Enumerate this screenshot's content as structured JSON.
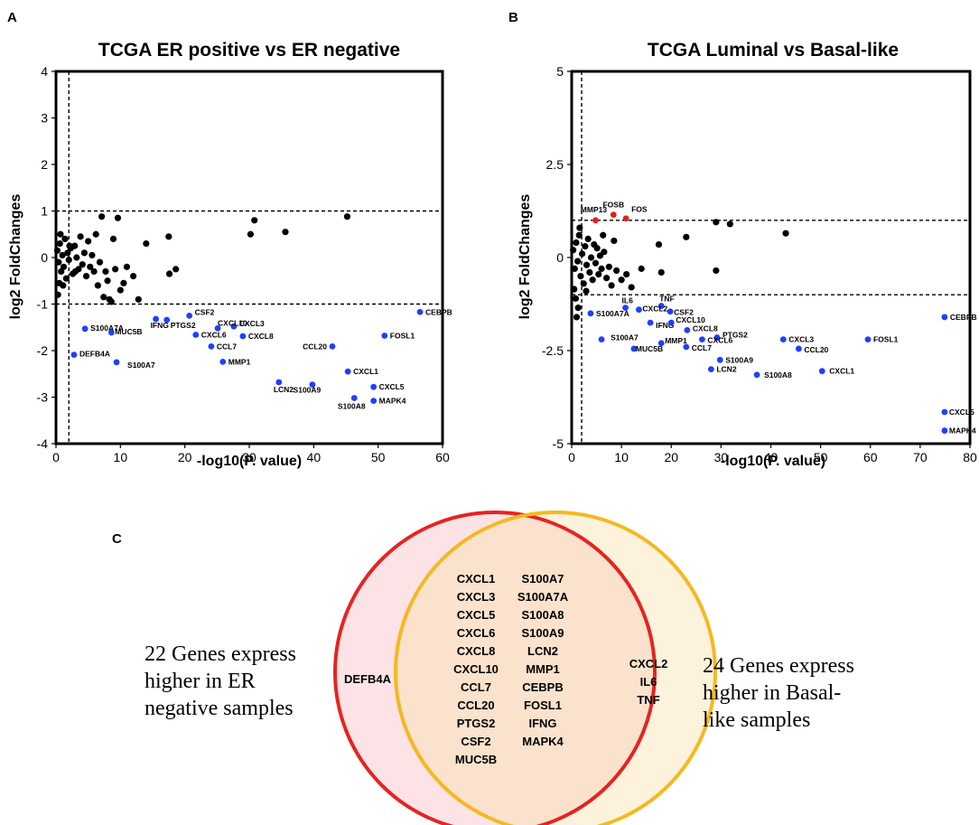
{
  "chart_data": [
    {
      "type": "scatter",
      "panel": "A",
      "title": "TCGA ER positive vs ER negative",
      "xlabel": "-log10(P. value)",
      "ylabel": "log2 FoldChanges",
      "xlim": [
        0,
        60
      ],
      "ylim": [
        -4,
        4
      ],
      "xticks": [
        0,
        10,
        20,
        30,
        40,
        50,
        60
      ],
      "yticks": [
        -4,
        -3,
        -2,
        -1,
        0,
        1,
        2,
        3,
        4
      ],
      "thresholds": {
        "y": [
          1,
          -1
        ],
        "x": [
          2
        ]
      },
      "labeled_points": [
        {
          "label": "CEBPB",
          "x": 56.5,
          "y": -1.17,
          "color": "#1f3fff"
        },
        {
          "label": "FOSL1",
          "x": 51.0,
          "y": -1.68,
          "color": "#1f3fff"
        },
        {
          "label": "CCL20",
          "x": 42.9,
          "y": -1.91,
          "color": "#1f3fff"
        },
        {
          "label": "CXCL1",
          "x": 45.3,
          "y": -2.45,
          "color": "#1f3fff"
        },
        {
          "label": "CXCL5",
          "x": 49.3,
          "y": -2.78,
          "color": "#1f3fff"
        },
        {
          "label": "MAPK4",
          "x": 49.3,
          "y": -3.08,
          "color": "#1f3fff"
        },
        {
          "label": "S100A8",
          "x": 46.3,
          "y": -3.02,
          "color": "#1f3fff"
        },
        {
          "label": "S100A9",
          "x": 39.8,
          "y": -2.73,
          "color": "#1f3fff"
        },
        {
          "label": "LCN2",
          "x": 34.6,
          "y": -2.68,
          "color": "#1f3fff"
        },
        {
          "label": "MMP1",
          "x": 25.9,
          "y": -2.24,
          "color": "#1f3fff"
        },
        {
          "label": "CCL7",
          "x": 24.1,
          "y": -1.91,
          "color": "#1f3fff"
        },
        {
          "label": "CXCL8",
          "x": 29.0,
          "y": -1.69,
          "color": "#1f3fff"
        },
        {
          "label": "CXCL3",
          "x": 27.6,
          "y": -1.48,
          "color": "#1f3fff"
        },
        {
          "label": "CXCL10",
          "x": 25.1,
          "y": -1.52,
          "color": "#1f3fff"
        },
        {
          "label": "CXCL6",
          "x": 21.7,
          "y": -1.66,
          "color": "#1f3fff"
        },
        {
          "label": "CSF2",
          "x": 20.7,
          "y": -1.25,
          "color": "#1f3fff"
        },
        {
          "label": "PTGS2",
          "x": 17.2,
          "y": -1.34,
          "color": "#1f3fff"
        },
        {
          "label": "IFNG",
          "x": 15.5,
          "y": -1.32,
          "color": "#1f3fff"
        },
        {
          "label": "S100A7A",
          "x": 4.5,
          "y": -1.53,
          "color": "#1f3fff"
        },
        {
          "label": "MUC5B",
          "x": 8.6,
          "y": -1.61,
          "color": "#1f3fff"
        },
        {
          "label": "DEFB4A",
          "x": 2.8,
          "y": -2.09,
          "color": "#1f3fff"
        },
        {
          "label": "S100A7",
          "x": 9.4,
          "y": -2.25,
          "color": "#1f3fff"
        }
      ],
      "other_points": [
        [
          0.2,
          0.15
        ],
        [
          0.4,
          -0.1
        ],
        [
          0.6,
          0.3
        ],
        [
          0.8,
          -0.3
        ],
        [
          1.0,
          0.05
        ],
        [
          1.2,
          -0.2
        ],
        [
          1.4,
          0.4
        ],
        [
          1.6,
          -0.45
        ],
        [
          1.8,
          0.1
        ],
        [
          2.0,
          -0.05
        ],
        [
          2.3,
          0.2
        ],
        [
          2.6,
          -0.35
        ],
        [
          2.9,
          0.25
        ],
        [
          3.2,
          0.0
        ],
        [
          3.5,
          -0.25
        ],
        [
          3.8,
          0.45
        ],
        [
          4.1,
          -0.15
        ],
        [
          4.4,
          0.1
        ],
        [
          4.7,
          -0.4
        ],
        [
          5.0,
          0.35
        ],
        [
          5.3,
          -0.2
        ],
        [
          5.6,
          0.05
        ],
        [
          5.9,
          -0.3
        ],
        [
          6.2,
          0.5
        ],
        [
          6.5,
          -0.6
        ],
        [
          6.8,
          -0.1
        ],
        [
          7.1,
          0.88
        ],
        [
          7.4,
          -0.85
        ],
        [
          7.7,
          -0.3
        ],
        [
          8.0,
          -0.5
        ],
        [
          8.3,
          -0.9
        ],
        [
          8.6,
          -0.95
        ],
        [
          8.9,
          0.4
        ],
        [
          9.2,
          -0.25
        ],
        [
          9.6,
          0.85
        ],
        [
          10.0,
          -0.7
        ],
        [
          10.5,
          -0.55
        ],
        [
          11.0,
          -0.2
        ],
        [
          12.0,
          -0.4
        ],
        [
          12.8,
          -0.9
        ],
        [
          14.0,
          0.3
        ],
        [
          17.5,
          0.45
        ],
        [
          17.6,
          -0.35
        ],
        [
          18.6,
          -0.25
        ],
        [
          30.2,
          0.5
        ],
        [
          30.8,
          0.8
        ],
        [
          35.6,
          0.55
        ],
        [
          45.2,
          0.88
        ],
        [
          0.3,
          -0.8
        ],
        [
          1.1,
          -0.6
        ],
        [
          2.1,
          0.25
        ],
        [
          0.7,
          0.5
        ],
        [
          3.0,
          -0.3
        ],
        [
          0.5,
          -0.55
        ]
      ]
    },
    {
      "type": "scatter",
      "panel": "B",
      "title": "TCGA Luminal vs Basal-like",
      "xlabel": "-log10(P. value)",
      "ylabel": "log2 FoldChanges",
      "xlim": [
        0,
        80
      ],
      "ylim": [
        -5,
        5
      ],
      "xticks": [
        0,
        10,
        20,
        30,
        40,
        50,
        60,
        70,
        80
      ],
      "yticks": [
        -5,
        -2.5,
        0,
        2.5,
        5
      ],
      "thresholds": {
        "y": [
          1,
          -1
        ],
        "x": [
          2
        ]
      },
      "labeled_points": [
        {
          "label": "MMP13",
          "x": 4.8,
          "y": 1.0,
          "color": "#e02020"
        },
        {
          "label": "FOSB",
          "x": 8.4,
          "y": 1.15,
          "color": "#e02020"
        },
        {
          "label": "FOS",
          "x": 10.9,
          "y": 1.05,
          "color": "#e02020"
        },
        {
          "label": "CEBPB",
          "x": 74.9,
          "y": -1.6,
          "color": "#1f3fff"
        },
        {
          "label": "FOSL1",
          "x": 59.5,
          "y": -2.2,
          "color": "#1f3fff"
        },
        {
          "label": "CXCL3",
          "x": 42.5,
          "y": -2.2,
          "color": "#1f3fff"
        },
        {
          "label": "CCL20",
          "x": 45.6,
          "y": -2.45,
          "color": "#1f3fff"
        },
        {
          "label": "CXCL1",
          "x": 50.3,
          "y": -3.05,
          "color": "#1f3fff"
        },
        {
          "label": "S100A8",
          "x": 37.2,
          "y": -3.15,
          "color": "#1f3fff"
        },
        {
          "label": "S100A9",
          "x": 29.8,
          "y": -2.75,
          "color": "#1f3fff"
        },
        {
          "label": "LCN2",
          "x": 28.0,
          "y": -3.0,
          "color": "#1f3fff"
        },
        {
          "label": "CXCL5",
          "x": 74.9,
          "y": -4.15,
          "color": "#1f3fff"
        },
        {
          "label": "MAPK4",
          "x": 74.9,
          "y": -4.65,
          "color": "#1f3fff"
        },
        {
          "label": "IL6",
          "x": 10.8,
          "y": -1.35,
          "color": "#1f3fff"
        },
        {
          "label": "TNF",
          "x": 18.0,
          "y": -1.3,
          "color": "#1f3fff"
        },
        {
          "label": "CXCL2",
          "x": 13.5,
          "y": -1.4,
          "color": "#1f3fff"
        },
        {
          "label": "CSF2",
          "x": 19.8,
          "y": -1.45,
          "color": "#1f3fff"
        },
        {
          "label": "S100A7A",
          "x": 3.8,
          "y": -1.5,
          "color": "#1f3fff"
        },
        {
          "label": "IFNG",
          "x": 15.8,
          "y": -1.75,
          "color": "#1f3fff"
        },
        {
          "label": "CXCL10",
          "x": 20.0,
          "y": -1.75,
          "color": "#1f3fff"
        },
        {
          "label": "CXCL8",
          "x": 23.2,
          "y": -1.95,
          "color": "#1f3fff"
        },
        {
          "label": "PTGS2",
          "x": 29.2,
          "y": -2.15,
          "color": "#1f3fff"
        },
        {
          "label": "CXCL6",
          "x": 26.2,
          "y": -2.2,
          "color": "#1f3fff"
        },
        {
          "label": "S100A7",
          "x": 6.0,
          "y": -2.2,
          "color": "#1f3fff"
        },
        {
          "label": "MMP1",
          "x": 18.0,
          "y": -2.3,
          "color": "#1f3fff"
        },
        {
          "label": "MUC5B",
          "x": 12.5,
          "y": -2.45,
          "color": "#1f3fff"
        },
        {
          "label": "CCL7",
          "x": 23.0,
          "y": -2.4,
          "color": "#1f3fff"
        }
      ],
      "other_points": [
        [
          0.3,
          0.2
        ],
        [
          0.6,
          -0.3
        ],
        [
          0.9,
          0.4
        ],
        [
          1.2,
          -0.1
        ],
        [
          1.5,
          0.6
        ],
        [
          1.8,
          -0.5
        ],
        [
          2.1,
          0.1
        ],
        [
          2.4,
          -0.7
        ],
        [
          2.7,
          0.3
        ],
        [
          3.0,
          -0.2
        ],
        [
          3.3,
          0.5
        ],
        [
          3.6,
          -0.4
        ],
        [
          3.9,
          0.0
        ],
        [
          4.2,
          -0.6
        ],
        [
          4.5,
          0.35
        ],
        [
          4.8,
          -0.15
        ],
        [
          5.1,
          0.25
        ],
        [
          5.4,
          -0.45
        ],
        [
          5.7,
          0.05
        ],
        [
          6.0,
          -0.3
        ],
        [
          6.5,
          0.15
        ],
        [
          7.0,
          -0.55
        ],
        [
          7.5,
          -0.25
        ],
        [
          8.0,
          -0.75
        ],
        [
          8.5,
          0.45
        ],
        [
          9.0,
          -0.35
        ],
        [
          10.0,
          -0.6
        ],
        [
          11.0,
          -0.45
        ],
        [
          12.0,
          -0.8
        ],
        [
          14.0,
          -0.3
        ],
        [
          1.0,
          -1.6
        ],
        [
          1.3,
          -1.35
        ],
        [
          0.8,
          -1.1
        ],
        [
          17.5,
          0.35
        ],
        [
          18.0,
          -0.4
        ],
        [
          23.0,
          0.55
        ],
        [
          29.0,
          0.95
        ],
        [
          29.0,
          -0.35
        ],
        [
          31.8,
          0.9
        ],
        [
          43.0,
          0.65
        ],
        [
          1.6,
          0.8
        ],
        [
          2.9,
          -0.9
        ],
        [
          0.5,
          -0.85
        ],
        [
          6.3,
          0.6
        ]
      ]
    }
  ],
  "venn": {
    "panel": "C",
    "left_description": [
      "22 Genes express",
      "higher in ER",
      "negative samples"
    ],
    "right_description": [
      "24 Genes express",
      "higher in Basal-",
      "like samples"
    ],
    "left_only": [
      "DEFB4A"
    ],
    "right_only": [
      "CXCL2",
      "IL6",
      "TNF"
    ],
    "overlap_col1": [
      "CXCL1",
      "CXCL3",
      "CXCL5",
      "CXCL6",
      "CXCL8",
      "CXCL10",
      "CCL7",
      "CCL20",
      "PTGS2",
      "CSF2",
      "MUC5B"
    ],
    "overlap_col2": [
      "S100A7",
      "S100A7A",
      "S100A8",
      "S100A9",
      "LCN2",
      "MMP1",
      "CEBPB",
      "FOSL1",
      "IFNG",
      "MAPK4"
    ],
    "colors": {
      "left": "#e52421",
      "right": "#f5b820",
      "left_fill": "#fde3e6",
      "right_fill": "#fdf3dc",
      "overlap_fill": "#fbe2cc"
    }
  },
  "colors": {
    "blue": "#1f3fff",
    "red": "#e02020",
    "black": "#000000"
  }
}
